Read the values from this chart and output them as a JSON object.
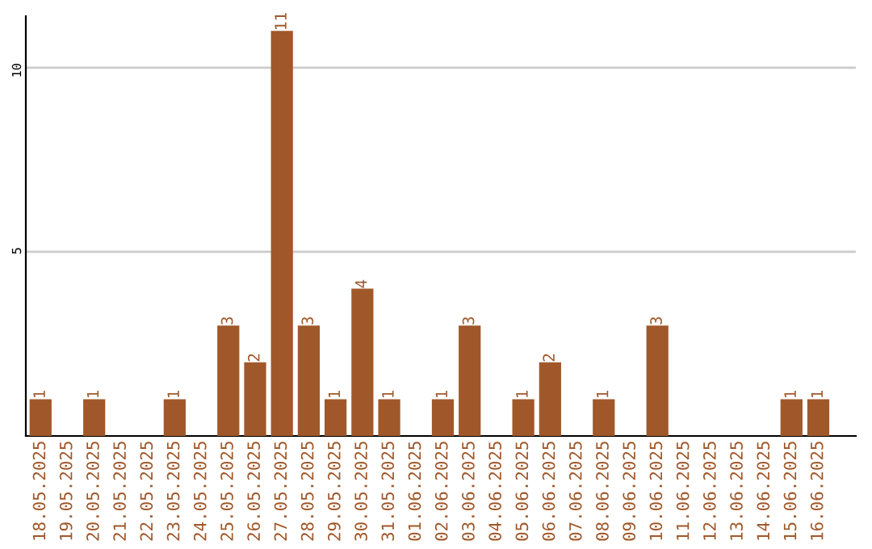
{
  "chart_data": {
    "type": "bar",
    "categories": [
      "18.05.2025",
      "19.05.2025",
      "20.05.2025",
      "21.05.2025",
      "22.05.2025",
      "23.05.2025",
      "24.05.2025",
      "25.05.2025",
      "26.05.2025",
      "27.05.2025",
      "28.05.2025",
      "29.05.2025",
      "30.05.2025",
      "31.05.2025",
      "01.06.2025",
      "02.06.2025",
      "03.06.2025",
      "04.06.2025",
      "05.06.2025",
      "06.06.2025",
      "07.06.2025",
      "08.06.2025",
      "09.06.2025",
      "10.06.2025",
      "11.06.2025",
      "12.06.2025",
      "13.06.2025",
      "14.06.2025",
      "15.06.2025",
      "16.06.2025"
    ],
    "values": [
      1,
      0,
      1,
      0,
      0,
      1,
      0,
      3,
      2,
      11,
      3,
      1,
      4,
      1,
      0,
      1,
      3,
      0,
      1,
      2,
      0,
      1,
      0,
      3,
      0,
      0,
      0,
      0,
      1,
      1
    ],
    "value_labels": [
      "1",
      null,
      "1",
      null,
      null,
      "1",
      null,
      "3",
      "2",
      "11",
      "3",
      "1",
      "4",
      "1",
      null,
      "1",
      "3",
      null,
      "1",
      "2",
      null,
      "1",
      null,
      "3",
      null,
      null,
      null,
      null,
      "1",
      "1"
    ],
    "color": "#a0582a",
    "ylim": [
      0,
      11.4
    ],
    "yticks": [
      5,
      10
    ],
    "grid": "y"
  }
}
